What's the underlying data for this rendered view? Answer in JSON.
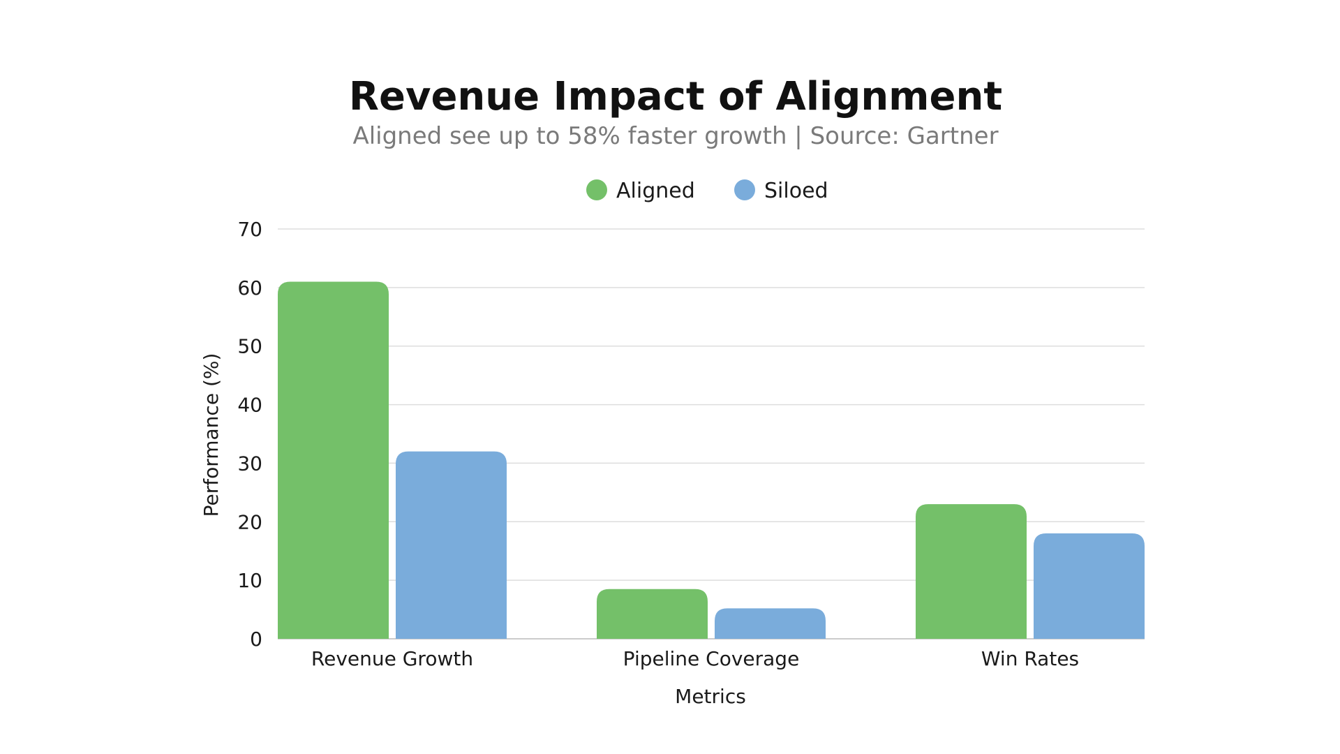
{
  "chart_data": {
    "type": "bar",
    "title": "Revenue Impact of Alignment",
    "subtitle": "Aligned see up to 58% faster growth | Source: Gartner",
    "xlabel": "Metrics",
    "ylabel": "Performance (%)",
    "categories": [
      "Revenue Growth",
      "Pipeline Coverage",
      "Win Rates"
    ],
    "series": [
      {
        "name": "Aligned",
        "color": "#74c069",
        "values": [
          61,
          8.5,
          23
        ]
      },
      {
        "name": "Siloed",
        "color": "#7aacdb",
        "values": [
          32,
          5.2,
          18
        ]
      }
    ],
    "ylim": [
      0,
      70
    ],
    "yticks": [
      0,
      10,
      20,
      30,
      40,
      50,
      60,
      70
    ],
    "grid": true,
    "legend_position": "top-center"
  }
}
